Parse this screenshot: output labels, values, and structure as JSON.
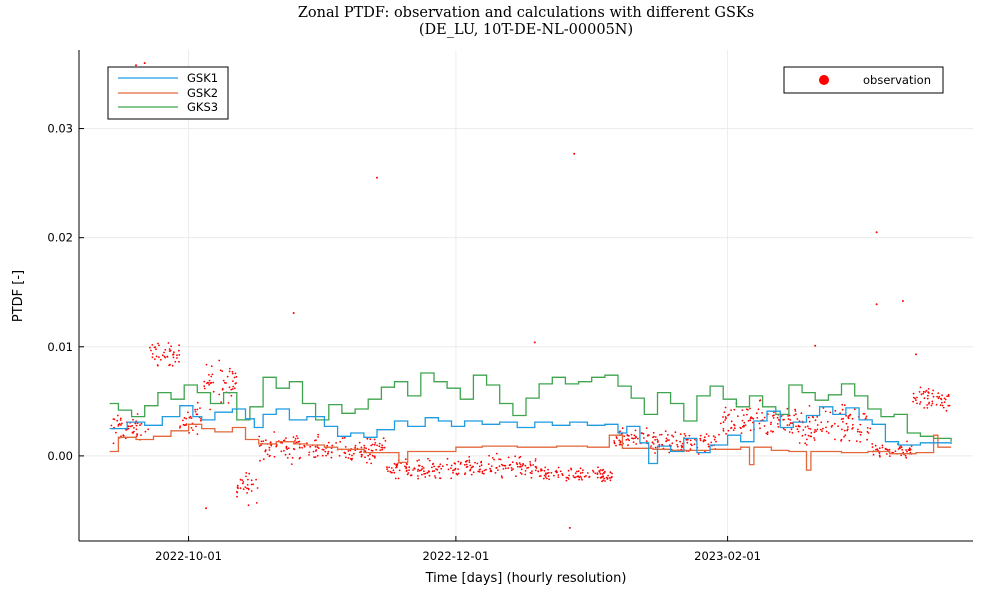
{
  "chart_data": {
    "type": "line",
    "title": "Zonal PTDF: observation and calculations with different GSKs",
    "subtitle": "(DE_LU, 10T-DE-NL-00005N)",
    "xlabel": "Time [days] (hourly resolution)",
    "ylabel": "PTDF [-]",
    "xlim": [
      "2022-09-06",
      "2023-03-29"
    ],
    "ylim": [
      -0.0078,
      0.0372
    ],
    "x_ticks": [
      "2022-10-01",
      "2022-12-01",
      "2023-02-01"
    ],
    "y_ticks": [
      0.0,
      0.01,
      0.02,
      0.03
    ],
    "y_tick_labels": [
      "0.00",
      "0.01",
      "0.02",
      "0.03"
    ],
    "grid": true,
    "legends": [
      {
        "placement": "top-left",
        "entries": [
          "GSK1",
          "GSK2",
          "GKS3"
        ]
      },
      {
        "placement": "top-right",
        "entries": [
          "observation"
        ]
      }
    ],
    "colors": {
      "GSK1": "#1f9be0",
      "GSK2": "#e2683c",
      "GKS3": "#3ea44e",
      "observation": "#ff0000"
    },
    "series": [
      {
        "name": "GSK1",
        "style": "step",
        "points": [
          [
            "2022-09-13",
            0.0025
          ],
          [
            "2022-09-17",
            0.0031
          ],
          [
            "2022-09-21",
            0.0028
          ],
          [
            "2022-09-25",
            0.0036
          ],
          [
            "2022-09-29",
            0.0046
          ],
          [
            "2022-10-02",
            0.0036
          ],
          [
            "2022-10-04",
            0.0033
          ],
          [
            "2022-10-07",
            0.004
          ],
          [
            "2022-10-11",
            0.0043
          ],
          [
            "2022-10-14",
            0.0034
          ],
          [
            "2022-10-16",
            0.0026
          ],
          [
            "2022-10-18",
            0.0038
          ],
          [
            "2022-10-21",
            0.0043
          ],
          [
            "2022-10-24",
            0.0033
          ],
          [
            "2022-10-28",
            0.0036
          ],
          [
            "2022-11-01",
            0.0027
          ],
          [
            "2022-11-04",
            0.0018
          ],
          [
            "2022-11-07",
            0.0021
          ],
          [
            "2022-11-10",
            0.0017
          ],
          [
            "2022-11-13",
            0.0024
          ],
          [
            "2022-11-17",
            0.0032
          ],
          [
            "2022-11-20",
            0.0027
          ],
          [
            "2022-11-24",
            0.0035
          ],
          [
            "2022-11-27",
            0.0032
          ],
          [
            "2022-11-30",
            0.0027
          ],
          [
            "2022-12-03",
            0.0032
          ],
          [
            "2022-12-07",
            0.0029
          ],
          [
            "2022-12-11",
            0.0031
          ],
          [
            "2022-12-15",
            0.0026
          ],
          [
            "2022-12-19",
            0.0031
          ],
          [
            "2022-12-23",
            0.0028
          ],
          [
            "2022-12-27",
            0.0031
          ],
          [
            "2022-12-31",
            0.0028
          ],
          [
            "2023-01-04",
            0.0029
          ],
          [
            "2023-01-07",
            0.0021
          ],
          [
            "2023-01-09",
            0.0027
          ],
          [
            "2023-01-12",
            0.0012
          ],
          [
            "2023-01-14",
            -0.0007
          ],
          [
            "2023-01-16",
            0.0009
          ],
          [
            "2023-01-19",
            0.0004
          ],
          [
            "2023-01-22",
            0.0016
          ],
          [
            "2023-01-25",
            0.0003
          ],
          [
            "2023-01-28",
            0.001
          ],
          [
            "2023-02-01",
            0.0019
          ],
          [
            "2023-02-04",
            0.0013
          ],
          [
            "2023-02-07",
            0.0032
          ],
          [
            "2023-02-10",
            0.0041
          ],
          [
            "2023-02-13",
            0.0026
          ],
          [
            "2023-02-16",
            0.0031
          ],
          [
            "2023-02-19",
            0.0037
          ],
          [
            "2023-02-22",
            0.0045
          ],
          [
            "2023-02-25",
            0.0038
          ],
          [
            "2023-02-28",
            0.0044
          ],
          [
            "2023-03-03",
            0.0033
          ],
          [
            "2023-03-06",
            0.0029
          ],
          [
            "2023-03-09",
            0.0013
          ],
          [
            "2023-03-12",
            0.001
          ],
          [
            "2023-03-15",
            0.001
          ],
          [
            "2023-03-17",
            0.0012
          ],
          [
            "2023-03-24",
            0.0011
          ]
        ]
      },
      {
        "name": "GSK2",
        "style": "step",
        "points": [
          [
            "2022-09-13",
            0.0004
          ],
          [
            "2022-09-15",
            0.0017
          ],
          [
            "2022-09-19",
            0.0015
          ],
          [
            "2022-09-23",
            0.0018
          ],
          [
            "2022-09-27",
            0.0023
          ],
          [
            "2022-10-01",
            0.0029
          ],
          [
            "2022-10-04",
            0.0025
          ],
          [
            "2022-10-07",
            0.0022
          ],
          [
            "2022-10-11",
            0.0026
          ],
          [
            "2022-10-14",
            0.0015
          ],
          [
            "2022-10-17",
            0.0011
          ],
          [
            "2022-10-21",
            0.0013
          ],
          [
            "2022-10-25",
            0.0011
          ],
          [
            "2022-10-28",
            0.001
          ],
          [
            "2022-11-01",
            0.0008
          ],
          [
            "2022-11-04",
            0.0006
          ],
          [
            "2022-11-10",
            0.0003
          ],
          [
            "2022-11-16",
            0.0003
          ],
          [
            "2022-11-18",
            -0.0006
          ],
          [
            "2022-11-20",
            0.0004
          ],
          [
            "2022-11-26",
            0.0004
          ],
          [
            "2022-12-01",
            0.0008
          ],
          [
            "2022-12-07",
            0.0009
          ],
          [
            "2022-12-15",
            0.0008
          ],
          [
            "2022-12-24",
            0.0009
          ],
          [
            "2022-12-31",
            0.0008
          ],
          [
            "2023-01-05",
            0.0019
          ],
          [
            "2023-01-08",
            0.0007
          ],
          [
            "2023-01-12",
            0.0007
          ],
          [
            "2023-01-15",
            0.0006
          ],
          [
            "2023-01-19",
            0.0005
          ],
          [
            "2023-01-28",
            0.0006
          ],
          [
            "2023-02-04",
            0.0008
          ],
          [
            "2023-02-06",
            -0.0008
          ],
          [
            "2023-02-07",
            0.0008
          ],
          [
            "2023-02-11",
            0.0005
          ],
          [
            "2023-02-15",
            0.0004
          ],
          [
            "2023-02-19",
            -0.0013
          ],
          [
            "2023-02-20",
            0.0004
          ],
          [
            "2023-02-27",
            0.0003
          ],
          [
            "2023-03-05",
            0.0004
          ],
          [
            "2023-03-10",
            0.0002
          ],
          [
            "2023-03-16",
            0.0003
          ],
          [
            "2023-03-20",
            0.0019
          ],
          [
            "2023-03-21",
            0.0008
          ],
          [
            "2023-03-24",
            0.0008
          ]
        ]
      },
      {
        "name": "GKS3",
        "style": "step",
        "points": [
          [
            "2022-09-13",
            0.0048
          ],
          [
            "2022-09-15",
            0.0042
          ],
          [
            "2022-09-18",
            0.0036
          ],
          [
            "2022-09-21",
            0.0046
          ],
          [
            "2022-09-24",
            0.0058
          ],
          [
            "2022-09-27",
            0.0052
          ],
          [
            "2022-09-30",
            0.0065
          ],
          [
            "2022-10-03",
            0.0058
          ],
          [
            "2022-10-06",
            0.0048
          ],
          [
            "2022-10-09",
            0.0058
          ],
          [
            "2022-10-12",
            0.0033
          ],
          [
            "2022-10-15",
            0.0045
          ],
          [
            "2022-10-18",
            0.0072
          ],
          [
            "2022-10-21",
            0.0062
          ],
          [
            "2022-10-24",
            0.0068
          ],
          [
            "2022-10-27",
            0.0048
          ],
          [
            "2022-10-30",
            0.0033
          ],
          [
            "2022-11-02",
            0.0047
          ],
          [
            "2022-11-05",
            0.0039
          ],
          [
            "2022-11-08",
            0.0043
          ],
          [
            "2022-11-11",
            0.0052
          ],
          [
            "2022-11-14",
            0.0063
          ],
          [
            "2022-11-17",
            0.0068
          ],
          [
            "2022-11-20",
            0.0055
          ],
          [
            "2022-11-23",
            0.0076
          ],
          [
            "2022-11-26",
            0.0068
          ],
          [
            "2022-11-29",
            0.0062
          ],
          [
            "2022-12-02",
            0.0052
          ],
          [
            "2022-12-05",
            0.0074
          ],
          [
            "2022-12-08",
            0.0065
          ],
          [
            "2022-12-11",
            0.0048
          ],
          [
            "2022-12-14",
            0.0037
          ],
          [
            "2022-12-17",
            0.0053
          ],
          [
            "2022-12-20",
            0.0066
          ],
          [
            "2022-12-23",
            0.0072
          ],
          [
            "2022-12-26",
            0.0066
          ],
          [
            "2022-12-29",
            0.0068
          ],
          [
            "2023-01-01",
            0.0072
          ],
          [
            "2023-01-04",
            0.0074
          ],
          [
            "2023-01-07",
            0.0064
          ],
          [
            "2023-01-10",
            0.0053
          ],
          [
            "2023-01-13",
            0.0038
          ],
          [
            "2023-01-16",
            0.0058
          ],
          [
            "2023-01-19",
            0.0048
          ],
          [
            "2023-01-22",
            0.0032
          ],
          [
            "2023-01-25",
            0.0055
          ],
          [
            "2023-01-28",
            0.0064
          ],
          [
            "2023-01-31",
            0.0052
          ],
          [
            "2023-02-03",
            0.0045
          ],
          [
            "2023-02-06",
            0.0055
          ],
          [
            "2023-02-09",
            0.0045
          ],
          [
            "2023-02-12",
            0.0038
          ],
          [
            "2023-02-15",
            0.0065
          ],
          [
            "2023-02-18",
            0.0058
          ],
          [
            "2023-02-21",
            0.0051
          ],
          [
            "2023-02-24",
            0.0056
          ],
          [
            "2023-02-27",
            0.0066
          ],
          [
            "2023-03-02",
            0.0055
          ],
          [
            "2023-03-05",
            0.0043
          ],
          [
            "2023-03-08",
            0.0036
          ],
          [
            "2023-03-11",
            0.0038
          ],
          [
            "2023-03-14",
            0.0021
          ],
          [
            "2023-03-17",
            0.0018
          ],
          [
            "2023-03-20",
            0.0016
          ],
          [
            "2023-03-24",
            0.0013
          ]
        ]
      },
      {
        "name": "observation",
        "style": "scatter",
        "outliers": [
          [
            "2022-09-19",
            0.0358
          ],
          [
            "2022-09-19",
            0.031
          ],
          [
            "2022-09-21",
            0.036
          ],
          [
            "2022-11-13",
            0.0255
          ],
          [
            "2022-12-28",
            0.0277
          ],
          [
            "2023-03-07",
            0.0205
          ],
          [
            "2023-03-07",
            0.0139
          ],
          [
            "2023-03-13",
            0.0142
          ],
          [
            "2022-10-25",
            0.0131
          ],
          [
            "2022-12-27",
            -0.0066
          ],
          [
            "2022-10-05",
            -0.0048
          ],
          [
            "2022-12-19",
            0.0104
          ],
          [
            "2023-03-16",
            0.0093
          ],
          [
            "2023-02-21",
            0.0101
          ]
        ],
        "clusters": [
          {
            "from": "2022-09-13",
            "to": "2022-09-22",
            "center": 0.0025,
            "spread": 0.0018
          },
          {
            "from": "2022-09-22",
            "to": "2022-09-29",
            "center": 0.0093,
            "spread": 0.0015
          },
          {
            "from": "2022-09-29",
            "to": "2022-10-04",
            "center": 0.0035,
            "spread": 0.0022
          },
          {
            "from": "2022-10-04",
            "to": "2022-10-12",
            "center": 0.0065,
            "spread": 0.0028
          },
          {
            "from": "2022-10-12",
            "to": "2022-10-17",
            "center": -0.0025,
            "spread": 0.0024
          },
          {
            "from": "2022-10-17",
            "to": "2022-10-31",
            "center": 0.0008,
            "spread": 0.0018
          },
          {
            "from": "2022-10-31",
            "to": "2022-11-15",
            "center": 0.0006,
            "spread": 0.0016
          },
          {
            "from": "2022-11-15",
            "to": "2022-12-02",
            "center": -0.0012,
            "spread": 0.0012
          },
          {
            "from": "2022-12-02",
            "to": "2022-12-20",
            "center": -0.001,
            "spread": 0.0014
          },
          {
            "from": "2022-12-20",
            "to": "2023-01-06",
            "center": -0.0018,
            "spread": 0.001
          },
          {
            "from": "2023-01-06",
            "to": "2023-01-14",
            "center": 0.0016,
            "spread": 0.0014
          },
          {
            "from": "2023-01-14",
            "to": "2023-01-30",
            "center": 0.0012,
            "spread": 0.0015
          },
          {
            "from": "2023-01-30",
            "to": "2023-02-17",
            "center": 0.0032,
            "spread": 0.0022
          },
          {
            "from": "2023-02-17",
            "to": "2023-03-06",
            "center": 0.0028,
            "spread": 0.0025
          },
          {
            "from": "2023-03-06",
            "to": "2023-03-15",
            "center": 0.0006,
            "spread": 0.0012
          },
          {
            "from": "2023-03-15",
            "to": "2023-03-24",
            "center": 0.0052,
            "spread": 0.0015
          }
        ]
      }
    ]
  }
}
